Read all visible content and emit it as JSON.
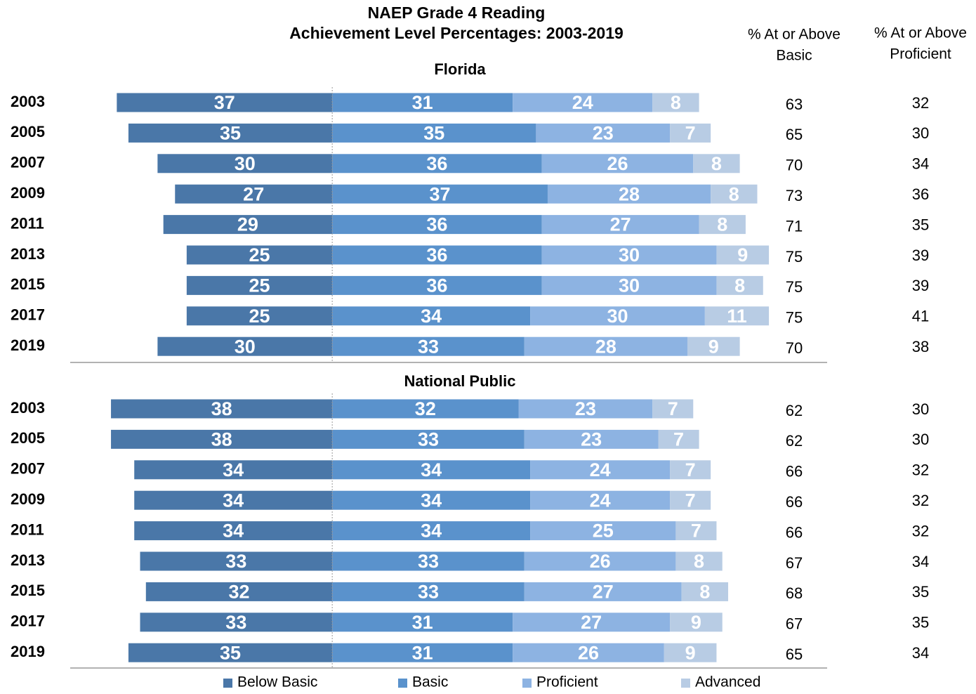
{
  "chart_data": [
    {
      "type": "diverging_bar",
      "title": [
        "NAEP Grade 4 Reading",
        "Achievement Level Percentages: 2003-2019"
      ],
      "column_headers": [
        [
          "% At or Above",
          "Basic"
        ],
        [
          "% At or Above",
          "Proficient"
        ]
      ],
      "subtitle": "Florida",
      "categories": [
        "2003",
        "2005",
        "2007",
        "2009",
        "2011",
        "2013",
        "2015",
        "2017",
        "2019"
      ],
      "xlim": [
        -45,
        85
      ],
      "series": [
        {
          "name": "Below Basic",
          "color": "#4a77a8",
          "direction": "left",
          "values": [
            37,
            35,
            30,
            27,
            29,
            25,
            25,
            25,
            30
          ]
        },
        {
          "name": "Basic",
          "color": "#5a92cc",
          "values": [
            31,
            35,
            36,
            37,
            36,
            36,
            36,
            34,
            33
          ]
        },
        {
          "name": "Proficient",
          "color": "#8db3e2",
          "values": [
            24,
            23,
            26,
            28,
            27,
            30,
            30,
            30,
            28
          ]
        },
        {
          "name": "Advanced",
          "color": "#b8cce4",
          "values": [
            8,
            7,
            8,
            8,
            8,
            9,
            8,
            11,
            9
          ]
        }
      ],
      "at_or_above_basic": [
        63,
        65,
        70,
        73,
        71,
        75,
        75,
        75,
        70
      ],
      "at_or_above_proficient": [
        32,
        30,
        34,
        36,
        35,
        39,
        39,
        41,
        38
      ]
    },
    {
      "type": "diverging_bar",
      "subtitle": "National Public",
      "categories": [
        "2003",
        "2005",
        "2007",
        "2009",
        "2011",
        "2013",
        "2015",
        "2017",
        "2019"
      ],
      "xlim": [
        -45,
        85
      ],
      "series": [
        {
          "name": "Below Basic",
          "color": "#4a77a8",
          "direction": "left",
          "values": [
            38,
            38,
            34,
            34,
            34,
            33,
            32,
            33,
            35
          ]
        },
        {
          "name": "Basic",
          "color": "#5a92cc",
          "values": [
            32,
            33,
            34,
            34,
            34,
            33,
            33,
            31,
            31
          ]
        },
        {
          "name": "Proficient",
          "color": "#8db3e2",
          "values": [
            23,
            23,
            24,
            24,
            25,
            26,
            27,
            27,
            26
          ]
        },
        {
          "name": "Advanced",
          "color": "#b8cce4",
          "values": [
            7,
            7,
            7,
            7,
            7,
            8,
            8,
            9,
            9
          ]
        }
      ],
      "at_or_above_basic": [
        62,
        62,
        66,
        66,
        66,
        67,
        68,
        67,
        65
      ],
      "at_or_above_proficient": [
        30,
        30,
        32,
        32,
        32,
        34,
        35,
        35,
        34
      ]
    }
  ]
}
